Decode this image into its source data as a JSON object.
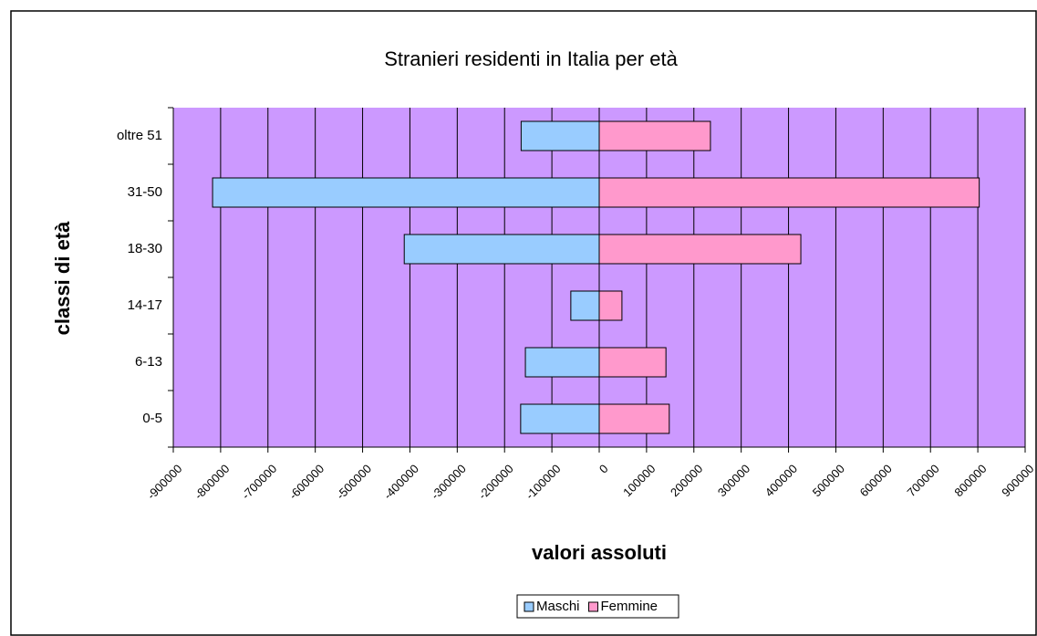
{
  "chart_data": {
    "type": "bar",
    "orientation": "horizontal",
    "title": "Stranieri residenti in Italia per età",
    "x_label": "valori assoluti",
    "y_label": "classi di età",
    "categories": [
      "0-5",
      "6-13",
      "14-17",
      "18-30",
      "31-50",
      "oltre 51"
    ],
    "series": [
      {
        "name": "Maschi",
        "color": "#99ccff",
        "values": [
          -166000,
          -156000,
          -60000,
          -412000,
          -817000,
          -165000
        ]
      },
      {
        "name": "Femmine",
        "color": "#ff99cc",
        "values": [
          148000,
          141000,
          48000,
          426000,
          803000,
          235000
        ]
      }
    ],
    "xlim": [
      -900000,
      900000
    ],
    "xticks": [
      -900000,
      -800000,
      -700000,
      -600000,
      -500000,
      -400000,
      -300000,
      -200000,
      -100000,
      0,
      100000,
      200000,
      300000,
      400000,
      500000,
      600000,
      700000,
      800000,
      900000
    ],
    "grid": true,
    "plot_background": "#cc99ff",
    "legend": "bottom"
  }
}
